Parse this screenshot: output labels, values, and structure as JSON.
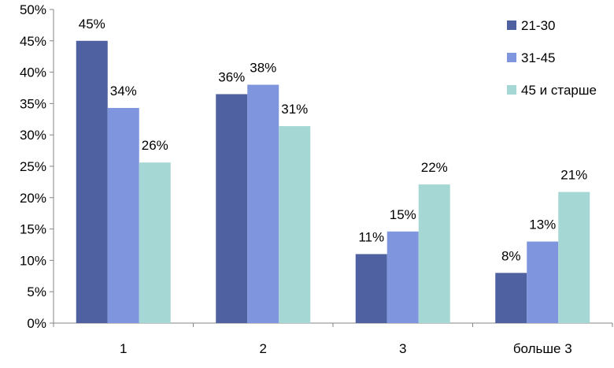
{
  "chart_data": {
    "type": "bar",
    "title": "",
    "xlabel": "",
    "ylabel": "",
    "categories": [
      "1",
      "2",
      "3",
      "больше 3"
    ],
    "series": [
      {
        "name": "21-30",
        "values": [
          45,
          36.5,
          11,
          8
        ],
        "labels": [
          "45%",
          "36%",
          "11%",
          "8%"
        ],
        "color": "#4F61A1"
      },
      {
        "name": "31-45",
        "values": [
          34.3,
          38,
          14.6,
          13
        ],
        "labels": [
          "34%",
          "38%",
          "15%",
          "13%"
        ],
        "color": "#7F95DE"
      },
      {
        "name": "45 и старше",
        "values": [
          25.6,
          31.4,
          22.1,
          20.9
        ],
        "labels": [
          "26%",
          "31%",
          "22%",
          "21%"
        ],
        "color": "#A5D7D4"
      }
    ],
    "ylim": [
      0,
      50
    ],
    "yticks": [
      0,
      5,
      10,
      15,
      20,
      25,
      30,
      35,
      40,
      45,
      50
    ],
    "ytick_labels": [
      "0%",
      "5%",
      "10%",
      "15%",
      "20%",
      "25%",
      "30%",
      "35%",
      "40%",
      "45%",
      "50%"
    ],
    "legend_position": "right",
    "grid": false
  }
}
